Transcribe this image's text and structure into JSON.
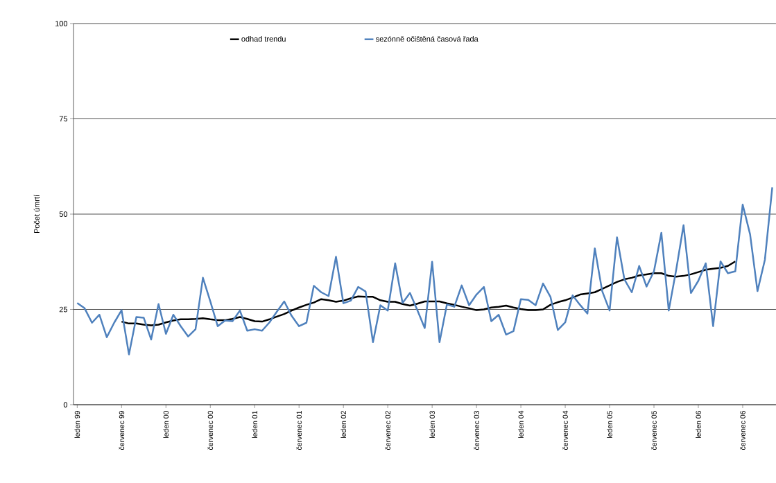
{
  "chart_data": {
    "type": "line",
    "ylabel": "Počet úmrtí",
    "categories": [
      "leden 99",
      null,
      null,
      null,
      null,
      null,
      "červenec 99",
      null,
      null,
      null,
      null,
      null,
      "leden 00",
      null,
      null,
      null,
      null,
      null,
      "červenec 00",
      null,
      null,
      null,
      null,
      null,
      "leden 01",
      null,
      null,
      null,
      null,
      null,
      "červenec 01",
      null,
      null,
      null,
      null,
      null,
      "leden 02",
      null,
      null,
      null,
      null,
      null,
      "červenec 02",
      null,
      null,
      null,
      null,
      null,
      "leden 03",
      null,
      null,
      null,
      null,
      null,
      "červenec 03",
      null,
      null,
      null,
      null,
      null,
      "leden 04",
      null,
      null,
      null,
      null,
      null,
      "červenec 04",
      null,
      null,
      null,
      null,
      null,
      "leden 05",
      null,
      null,
      null,
      null,
      null,
      "červenec 05",
      null,
      null,
      null,
      null,
      null,
      "leden 06",
      null,
      null,
      null,
      null,
      null,
      "červenec 06",
      null,
      null,
      null,
      null
    ],
    "series": [
      {
        "name": "odhad trendu",
        "color": "#000000",
        "values": [
          null,
          null,
          null,
          null,
          null,
          null,
          21.8,
          21.3,
          21.3,
          21.0,
          20.8,
          21.0,
          21.6,
          22.1,
          22.4,
          22.4,
          22.5,
          22.7,
          22.4,
          22.2,
          22.2,
          22.5,
          23.0,
          22.5,
          21.9,
          21.8,
          22.4,
          23.1,
          23.8,
          24.7,
          25.5,
          26.2,
          26.8,
          27.7,
          27.4,
          27.0,
          27.3,
          27.9,
          28.4,
          28.3,
          28.3,
          27.4,
          27.0,
          27.0,
          26.4,
          26.0,
          26.5,
          27.1,
          27.1,
          27.1,
          26.6,
          26.2,
          25.7,
          25.3,
          24.8,
          25.0,
          25.5,
          25.7,
          26.0,
          25.5,
          25.1,
          24.8,
          24.8,
          25.0,
          26.2,
          26.9,
          27.4,
          28.1,
          28.9,
          29.2,
          29.5,
          30.4,
          31.3,
          32.2,
          32.9,
          33.3,
          33.9,
          34.2,
          34.5,
          34.5,
          33.8,
          33.6,
          33.8,
          34.2,
          34.8,
          35.4,
          35.7,
          35.9,
          36.4,
          37.6,
          null,
          null,
          null,
          null,
          null
        ]
      },
      {
        "name": "sezónně očištěná časová řada",
        "color": "#4f81bd",
        "values": [
          26.7,
          25.3,
          21.5,
          23.6,
          17.7,
          21.5,
          24.8,
          13.2,
          23.0,
          22.8,
          17.1,
          26.4,
          18.6,
          23.6,
          20.6,
          17.9,
          19.8,
          33.3,
          27.1,
          20.6,
          22.1,
          21.9,
          24.7,
          19.4,
          19.8,
          19.4,
          21.6,
          24.4,
          27.1,
          23.3,
          20.6,
          21.5,
          31.2,
          29.5,
          28.5,
          38.8,
          26.6,
          27.3,
          30.9,
          29.7,
          16.4,
          26.1,
          24.7,
          37.1,
          26.7,
          29.3,
          24.8,
          20.1,
          37.5,
          16.4,
          26.3,
          25.7,
          31.3,
          26.1,
          28.9,
          30.9,
          21.9,
          23.6,
          18.4,
          19.3,
          27.7,
          27.5,
          26.1,
          31.8,
          28.3,
          19.6,
          21.6,
          28.7,
          26.2,
          23.9,
          41.0,
          29.8,
          24.7,
          43.9,
          32.9,
          29.5,
          36.4,
          31.0,
          35.0,
          45.1,
          24.7,
          35.3,
          47.1,
          29.3,
          32.5,
          37.1,
          20.6,
          37.6,
          34.5,
          35.0,
          52.5,
          44.7,
          29.8,
          38.0,
          57.0
        ]
      }
    ],
    "ylim": [
      0,
      100
    ],
    "yticks": [
      0,
      25,
      50,
      75,
      100
    ],
    "grid": "y",
    "legend": "top",
    "marker": "none",
    "line_style": "solid"
  }
}
